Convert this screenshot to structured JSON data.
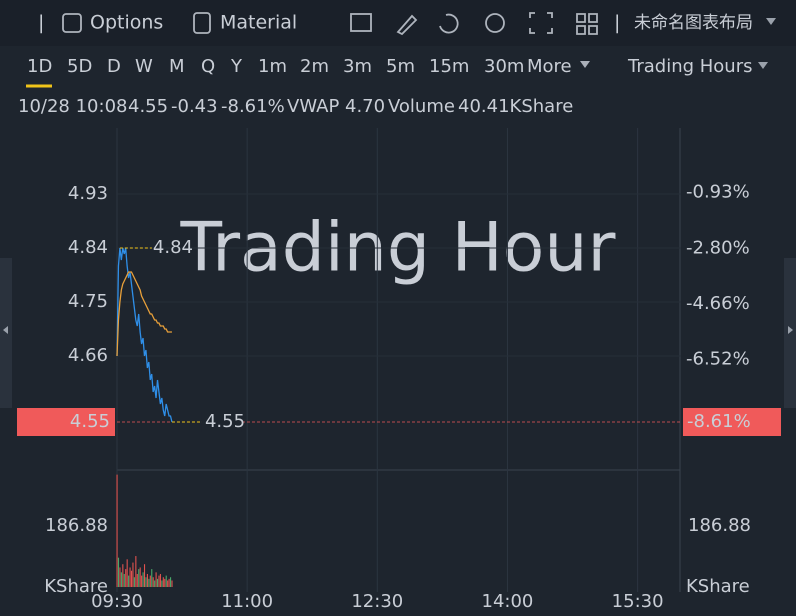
{
  "toolbar": {
    "options": "Options",
    "material": "Material",
    "layout": "未命名图表布局"
  },
  "timeframes": [
    "1D",
    "5D",
    "D",
    "W",
    "M",
    "Q",
    "Y",
    "1m",
    "2m",
    "3m",
    "5m",
    "15m",
    "30m",
    "More"
  ],
  "session": "Trading Hours",
  "quote": {
    "datetime": "10/28 10:08",
    "price": "4.55",
    "change": "-0.43",
    "change_pct": "-8.61%",
    "vwap_label": "VWAP",
    "vwap": "4.70",
    "volume_label": "Volume",
    "volume": "40.41KShare"
  },
  "chart_data": {
    "type": "line",
    "watermark": "Trading Hour",
    "x": [
      "09:30",
      "09:31",
      "09:32",
      "09:33",
      "09:34",
      "09:35",
      "09:36",
      "09:37",
      "09:38",
      "09:39",
      "09:40",
      "09:41",
      "09:42",
      "09:43",
      "09:44",
      "09:45",
      "09:46",
      "09:47",
      "09:48",
      "09:49",
      "09:50",
      "09:51",
      "09:52",
      "09:53",
      "09:54",
      "09:55",
      "09:56",
      "09:57",
      "09:58",
      "09:59",
      "10:00",
      "10:01",
      "10:02",
      "10:03",
      "10:04",
      "10:05",
      "10:06",
      "10:07",
      "10:08"
    ],
    "xlim": [
      "09:30",
      "16:00"
    ],
    "xticks": [
      "09:30",
      "11:00",
      "12:30",
      "14:00",
      "15:30"
    ],
    "ylim": [
      4.47,
      5.04
    ],
    "yticks": [
      4.93,
      4.84,
      4.75,
      4.66
    ],
    "y2lim": [
      -10.22,
      1.23
    ],
    "y2ticks": [
      {
        "value": -0.93,
        "label": "-0.93%"
      },
      {
        "value": -2.8,
        "label": "-2.80%"
      },
      {
        "value": -4.66,
        "label": "-4.66%"
      },
      {
        "value": -6.52,
        "label": "-6.52%"
      }
    ],
    "grid": true,
    "series": [
      {
        "color": "#2f8fe8",
        "values": [
          4.66,
          4.81,
          4.84,
          4.82,
          4.84,
          4.83,
          4.84,
          4.81,
          4.79,
          4.8,
          4.78,
          4.76,
          4.74,
          4.72,
          4.71,
          4.73,
          4.7,
          4.68,
          4.69,
          4.66,
          4.67,
          4.64,
          4.65,
          4.62,
          4.63,
          4.6,
          4.61,
          4.59,
          4.62,
          4.6,
          4.58,
          4.59,
          4.57,
          4.56,
          4.58,
          4.57,
          4.56,
          4.56,
          4.55
        ]
      },
      {
        "color": "#e8a03a",
        "values": [
          4.66,
          4.72,
          4.75,
          4.77,
          4.78,
          4.785,
          4.79,
          4.795,
          4.8,
          4.8,
          4.8,
          4.795,
          4.79,
          4.785,
          4.78,
          4.775,
          4.77,
          4.76,
          4.755,
          4.75,
          4.745,
          4.74,
          4.735,
          4.73,
          4.73,
          4.725,
          4.72,
          4.72,
          4.715,
          4.715,
          4.71,
          4.71,
          4.71,
          4.705,
          4.705,
          4.7,
          4.7,
          4.7,
          4.7
        ]
      }
    ],
    "high": 4.84,
    "last": 4.55,
    "last_pct": {
      "value": -8.61,
      "label": "-8.61%"
    },
    "last_color": "#f05a5a",
    "annotation_color": "#f0c419",
    "volume": {
      "unit": "KShare",
      "ylim": [
        0,
        350
      ],
      "yticks": [
        186.88
      ],
      "values": [
        345,
        90,
        60,
        45,
        70,
        40,
        55,
        85,
        35,
        60,
        50,
        75,
        30,
        95,
        40,
        55,
        60,
        35,
        45,
        70,
        30,
        40,
        25,
        35,
        55,
        30,
        20,
        45,
        25,
        35,
        40,
        20,
        30,
        25,
        35,
        20,
        25,
        30,
        20
      ],
      "colors": [
        "#e0524f",
        "#4aa86b",
        "#e0524f",
        "#4aa86b",
        "#e0524f",
        "#4aa86b",
        "#e0524f",
        "#e0524f",
        "#4aa86b",
        "#e0524f",
        "#e0524f",
        "#e0524f",
        "#4aa86b",
        "#e0524f",
        "#e0524f",
        "#4aa86b",
        "#e0524f",
        "#e0524f",
        "#4aa86b",
        "#e0524f",
        "#4aa86b",
        "#e0524f",
        "#4aa86b",
        "#e0524f",
        "#4aa86b",
        "#e0524f",
        "#4aa86b",
        "#e0524f",
        "#4aa86b",
        "#e0524f",
        "#e0524f",
        "#4aa86b",
        "#e0524f",
        "#e0524f",
        "#4aa86b",
        "#e0524f",
        "#e0524f",
        "#4aa86b",
        "#e0524f"
      ]
    }
  }
}
